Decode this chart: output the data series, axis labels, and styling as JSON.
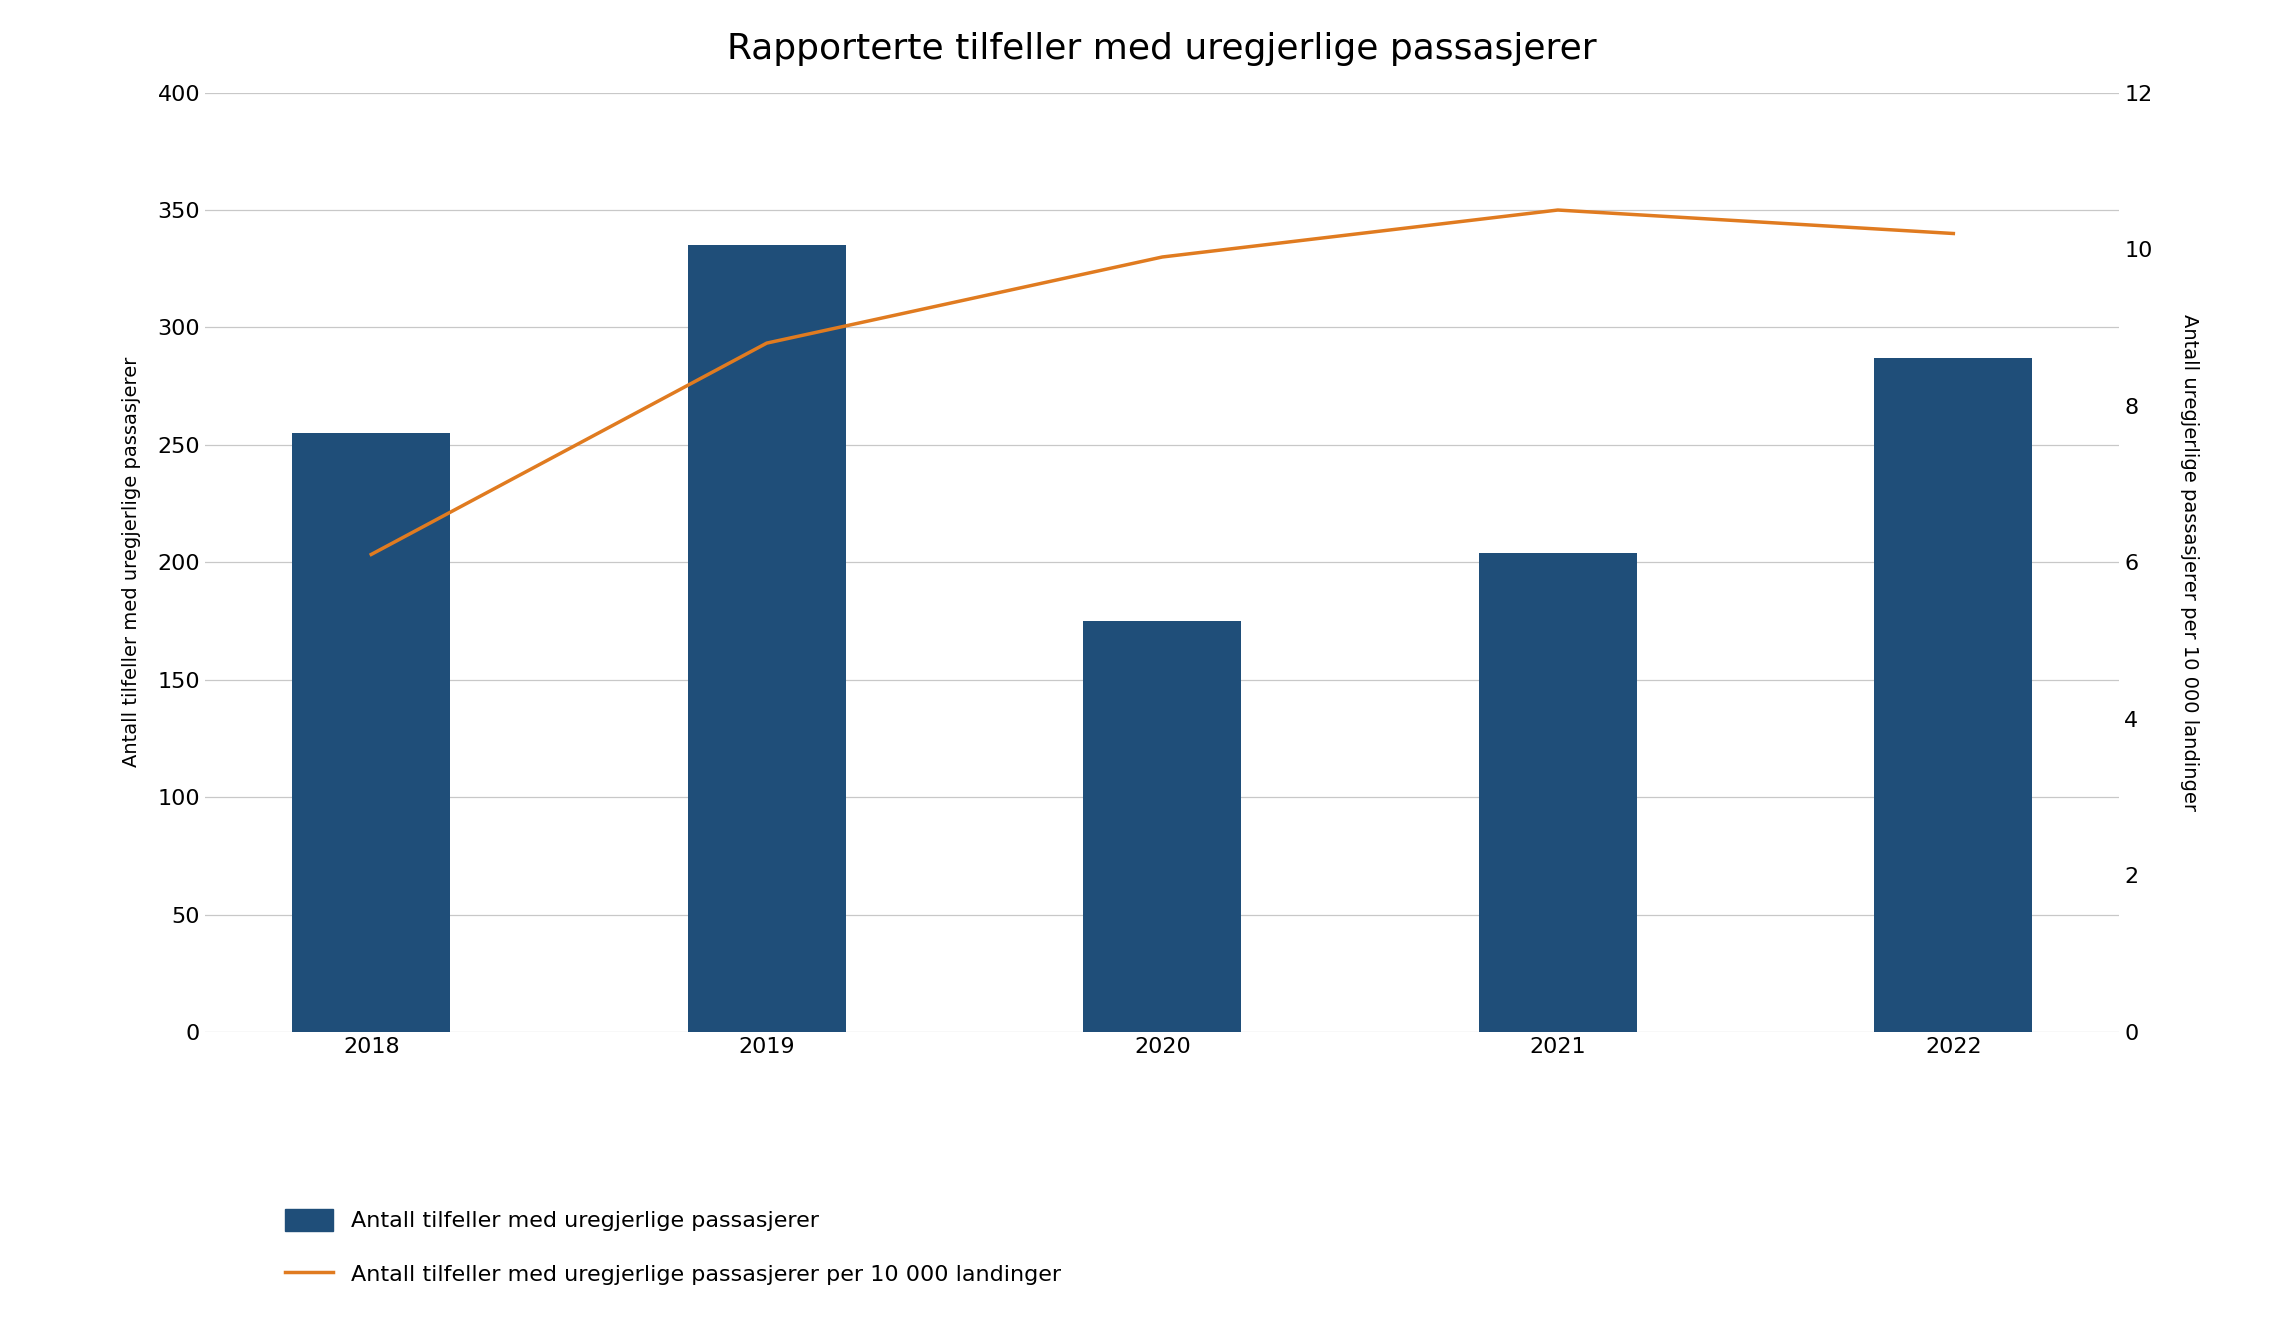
{
  "title": "Rapporterte tilfeller med uregjerlige passasjerer",
  "years": [
    "2018",
    "2019",
    "2020",
    "2021",
    "2022"
  ],
  "bar_values": [
    255,
    335,
    175,
    204,
    287
  ],
  "line_values": [
    6.1,
    8.8,
    9.9,
    10.5,
    10.2
  ],
  "bar_color": "#1F4E79",
  "line_color": "#E07B20",
  "left_ylim": [
    0,
    400
  ],
  "right_ylim": [
    0,
    12
  ],
  "left_yticks": [
    0,
    50,
    100,
    150,
    200,
    250,
    300,
    350,
    400
  ],
  "right_yticks": [
    0,
    2,
    4,
    6,
    8,
    10,
    12
  ],
  "left_ylabel": "Antall tilfeller med uregjerlige passasjerer",
  "right_ylabel": "Antall uregjerlige passasjerer per 10 000 landinger",
  "legend_bar_label": "Antall tilfeller med uregjerlige passasjerer",
  "legend_line_label": "Antall tilfeller med uregjerlige passasjerer per 10 000 landinger",
  "background_color": "#ffffff",
  "grid_color": "#c8c8c8",
  "line_width": 2.5,
  "bar_width": 0.4,
  "title_fontsize": 26,
  "axis_label_fontsize": 14,
  "tick_fontsize": 16,
  "legend_fontsize": 16
}
